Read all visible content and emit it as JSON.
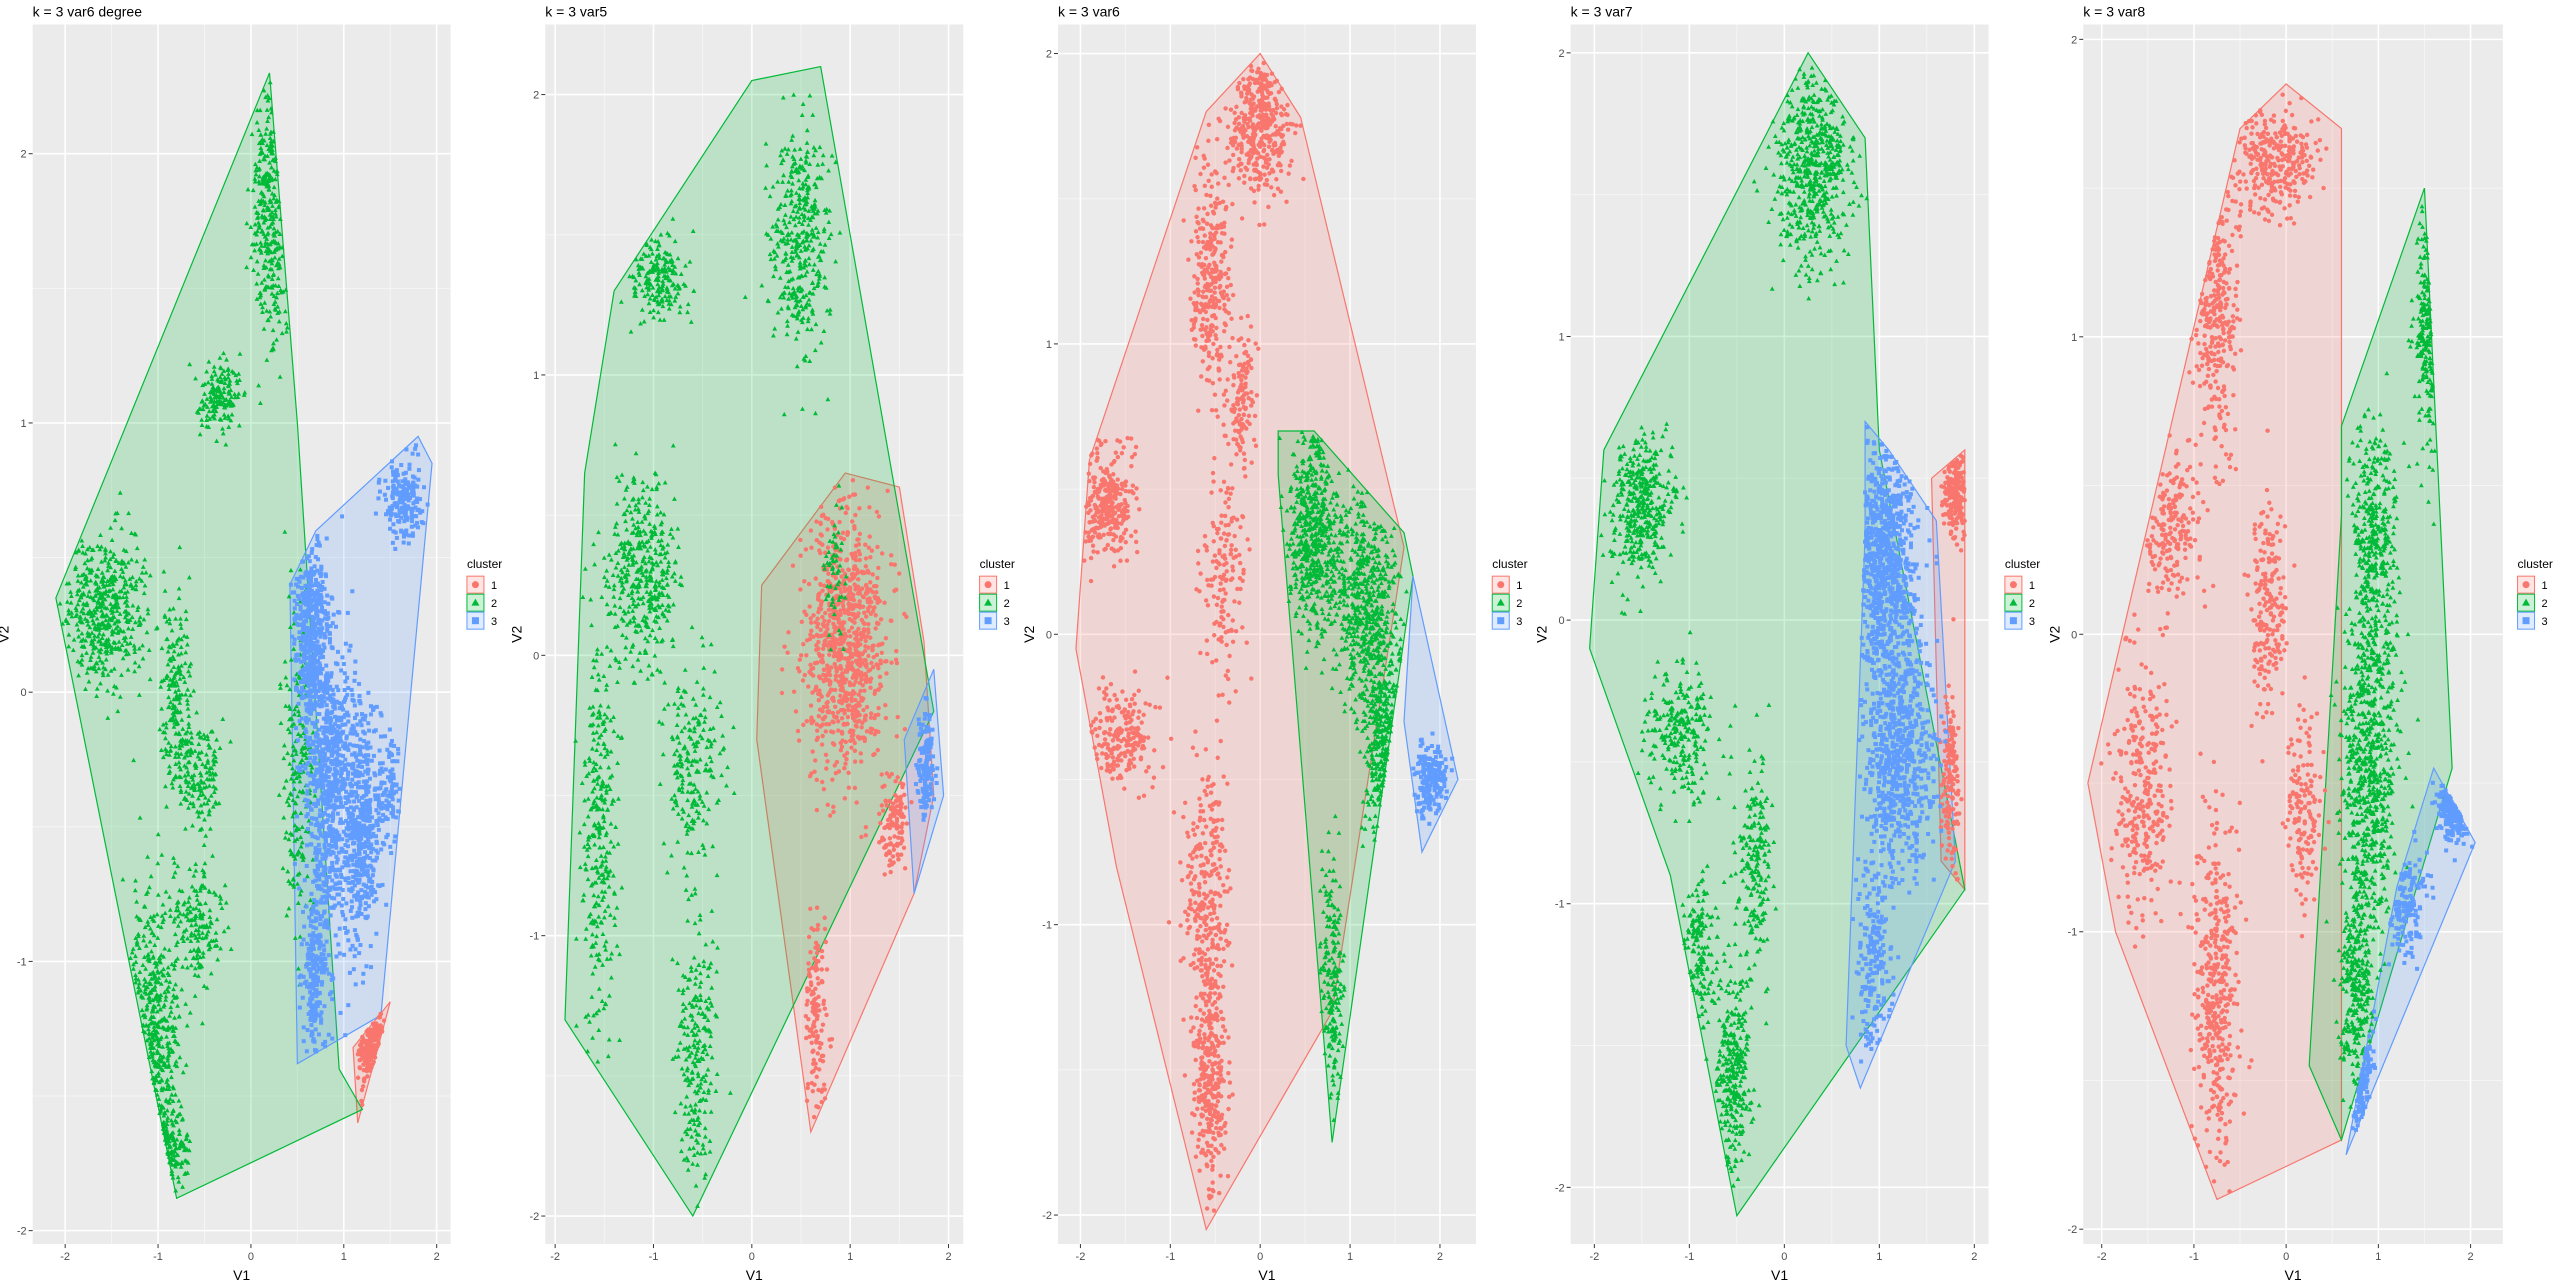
{
  "legend_title": "cluster",
  "legend_labels": [
    "1",
    "2",
    "3"
  ],
  "colors": {
    "1": "#F8766D",
    "2": "#00BA38",
    "3": "#619CFF",
    "panel_bg": "#EBEBEB",
    "grid": "#FFFFFF"
  },
  "chart_data": [
    {
      "type": "scatter",
      "title": "k = 3 var6 degree",
      "xlabel": "V1",
      "ylabel": "V2",
      "xlim": [
        -2.35,
        2.15
      ],
      "ylim": [
        -2.05,
        2.48
      ],
      "xticks": [
        -2,
        -1,
        0,
        1,
        2
      ],
      "yticks": [
        -2,
        -1,
        0,
        1,
        2
      ],
      "grid": true,
      "legend_position": "right",
      "clusters": [
        {
          "name": "1",
          "hull": [
            [
              1.1,
              -1.32
            ],
            [
              1.5,
              -1.15
            ],
            [
              1.15,
              -1.6
            ]
          ],
          "blobs": [
            [
              1.3,
              -1.3,
              0.12,
              0.15,
              180
            ]
          ]
        },
        {
          "name": "2",
          "hull": [
            [
              -2.1,
              0.35
            ],
            [
              0.2,
              2.3
            ],
            [
              0.5,
              1.0
            ],
            [
              0.95,
              -1.4
            ],
            [
              1.2,
              -1.55
            ],
            [
              -0.8,
              -1.88
            ]
          ],
          "blobs": [
            [
              0.2,
              1.8,
              0.16,
              0.4,
              320
            ],
            [
              -0.35,
              1.1,
              0.2,
              0.12,
              160
            ],
            [
              -1.55,
              0.3,
              0.4,
              0.22,
              500
            ],
            [
              -0.8,
              0.0,
              0.15,
              0.35,
              200
            ],
            [
              -0.55,
              -0.3,
              0.2,
              0.15,
              140
            ],
            [
              -0.55,
              -0.85,
              0.2,
              0.2,
              160
            ],
            [
              -1.05,
              -1.3,
              0.22,
              0.45,
              420
            ],
            [
              -0.9,
              -1.7,
              0.2,
              0.1,
              120
            ],
            [
              0.5,
              -0.3,
              0.15,
              0.5,
              200
            ]
          ]
        },
        {
          "name": "3",
          "hull": [
            [
              0.7,
              0.6
            ],
            [
              1.8,
              0.95
            ],
            [
              1.95,
              0.85
            ],
            [
              1.4,
              -1.2
            ],
            [
              0.5,
              -1.38
            ],
            [
              0.42,
              0.4
            ]
          ],
          "blobs": [
            [
              1.65,
              0.72,
              0.18,
              0.12,
              200
            ],
            [
              0.65,
              0.2,
              0.15,
              0.35,
              500
            ],
            [
              0.85,
              -0.35,
              0.22,
              0.45,
              700
            ],
            [
              1.2,
              -0.5,
              0.18,
              0.4,
              500
            ],
            [
              0.7,
              -1.05,
              0.12,
              0.25,
              220
            ],
            [
              1.5,
              -0.35,
              0.08,
              0.15,
              80
            ]
          ]
        }
      ]
    },
    {
      "type": "scatter",
      "title": "k = 3 var5",
      "xlabel": "V1",
      "ylabel": "V2",
      "xlim": [
        -2.1,
        2.15
      ],
      "ylim": [
        -2.1,
        2.25
      ],
      "xticks": [
        -2,
        -1,
        0,
        1,
        2
      ],
      "yticks": [
        -2,
        -1,
        0,
        1,
        2
      ],
      "grid": true,
      "legend_position": "right",
      "clusters": [
        {
          "name": "1",
          "hull": [
            [
              0.95,
              0.65
            ],
            [
              1.5,
              0.6
            ],
            [
              1.75,
              0.05
            ],
            [
              1.85,
              -0.5
            ],
            [
              1.65,
              -0.85
            ],
            [
              0.6,
              -1.7
            ],
            [
              0.05,
              -0.3
            ],
            [
              0.1,
              0.25
            ]
          ],
          "blobs": [
            [
              0.95,
              0.05,
              0.35,
              0.42,
              900
            ],
            [
              1.45,
              -0.6,
              0.12,
              0.15,
              120
            ],
            [
              0.65,
              -1.3,
              0.1,
              0.3,
              140
            ]
          ]
        },
        {
          "name": "2",
          "hull": [
            [
              -1.4,
              1.3
            ],
            [
              0.0,
              2.05
            ],
            [
              0.7,
              2.1
            ],
            [
              1.5,
              0.5
            ],
            [
              1.85,
              -0.2
            ],
            [
              -0.6,
              -2.0
            ],
            [
              -1.9,
              -1.3
            ],
            [
              -1.7,
              0.65
            ]
          ],
          "blobs": [
            [
              0.5,
              1.5,
              0.25,
              0.35,
              400
            ],
            [
              -0.95,
              1.35,
              0.25,
              0.12,
              200
            ],
            [
              -1.1,
              0.3,
              0.3,
              0.3,
              400
            ],
            [
              -1.55,
              -0.6,
              0.15,
              0.6,
              300
            ],
            [
              -0.55,
              -1.4,
              0.15,
              0.4,
              240
            ],
            [
              -0.6,
              -0.4,
              0.25,
              0.25,
              200
            ],
            [
              0.85,
              0.3,
              0.1,
              0.2,
              60
            ]
          ]
        },
        {
          "name": "3",
          "hull": [
            [
              1.85,
              -0.05
            ],
            [
              1.95,
              -0.5
            ],
            [
              1.65,
              -0.85
            ],
            [
              1.55,
              -0.3
            ]
          ],
          "blobs": [
            [
              1.78,
              -0.4,
              0.08,
              0.18,
              150
            ]
          ]
        }
      ]
    },
    {
      "type": "scatter",
      "title": "k = 3 var6",
      "xlabel": "V1",
      "ylabel": "V2",
      "xlim": [
        -2.25,
        2.4
      ],
      "ylim": [
        -2.1,
        2.1
      ],
      "xticks": [
        -2,
        -1,
        0,
        1,
        2
      ],
      "yticks": [
        -2,
        -1,
        0,
        1,
        2
      ],
      "grid": true,
      "legend_position": "right",
      "clusters": [
        {
          "name": "1",
          "hull": [
            [
              -2.05,
              -0.05
            ],
            [
              -1.9,
              0.6
            ],
            [
              -0.6,
              1.8
            ],
            [
              0.0,
              2.0
            ],
            [
              0.45,
              1.78
            ],
            [
              1.6,
              0.3
            ],
            [
              0.8,
              -1.3
            ],
            [
              -0.6,
              -2.05
            ],
            [
              -1.6,
              -0.8
            ]
          ],
          "blobs": [
            [
              0.0,
              1.75,
              0.28,
              0.2,
              400
            ],
            [
              -0.55,
              1.2,
              0.18,
              0.35,
              300
            ],
            [
              -1.7,
              0.45,
              0.25,
              0.15,
              300
            ],
            [
              -1.55,
              -0.35,
              0.3,
              0.15,
              200
            ],
            [
              -0.6,
              -0.9,
              0.2,
              0.4,
              300
            ],
            [
              -0.55,
              -1.55,
              0.15,
              0.3,
              300
            ],
            [
              -0.4,
              0.2,
              0.18,
              0.3,
              150
            ],
            [
              -0.2,
              0.8,
              0.12,
              0.2,
              120
            ]
          ]
        },
        {
          "name": "2",
          "hull": [
            [
              0.2,
              0.7
            ],
            [
              0.6,
              0.7
            ],
            [
              1.6,
              0.35
            ],
            [
              1.7,
              0.2
            ],
            [
              0.8,
              -1.75
            ],
            [
              0.2,
              0.55
            ]
          ],
          "blobs": [
            [
              0.6,
              0.35,
              0.25,
              0.3,
              600
            ],
            [
              1.2,
              0.1,
              0.3,
              0.3,
              600
            ],
            [
              1.4,
              -0.4,
              0.2,
              0.3,
              300
            ],
            [
              0.8,
              -1.2,
              0.1,
              0.35,
              200
            ]
          ]
        },
        {
          "name": "3",
          "hull": [
            [
              1.7,
              0.2
            ],
            [
              2.2,
              -0.5
            ],
            [
              1.8,
              -0.75
            ],
            [
              1.6,
              -0.3
            ]
          ],
          "blobs": [
            [
              1.9,
              -0.5,
              0.15,
              0.1,
              200
            ]
          ]
        }
      ]
    },
    {
      "type": "scatter",
      "title": "k = 3 var7",
      "xlabel": "V1",
      "ylabel": "V2",
      "xlim": [
        -2.25,
        2.15
      ],
      "ylim": [
        -2.2,
        2.1
      ],
      "xticks": [
        -2,
        -1,
        0,
        1,
        2
      ],
      "yticks": [
        -2,
        -1,
        0,
        1,
        2
      ],
      "grid": true,
      "legend_position": "right",
      "clusters": [
        {
          "name": "1",
          "hull": [
            [
              1.55,
              0.5
            ],
            [
              1.9,
              0.6
            ],
            [
              1.9,
              -0.95
            ],
            [
              1.65,
              -0.85
            ]
          ],
          "blobs": [
            [
              1.8,
              0.45,
              0.1,
              0.12,
              200
            ],
            [
              1.75,
              -0.6,
              0.08,
              0.3,
              150
            ]
          ]
        },
        {
          "name": "2",
          "hull": [
            [
              -2.05,
              -0.1
            ],
            [
              -1.9,
              0.6
            ],
            [
              0.25,
              2.0
            ],
            [
              0.85,
              1.7
            ],
            [
              1.0,
              0.6
            ],
            [
              1.9,
              -0.95
            ],
            [
              -0.5,
              -2.1
            ],
            [
              -1.2,
              -0.9
            ]
          ],
          "blobs": [
            [
              0.3,
              1.6,
              0.35,
              0.3,
              600
            ],
            [
              -1.5,
              0.4,
              0.25,
              0.2,
              400
            ],
            [
              -1.1,
              -0.4,
              0.3,
              0.2,
              250
            ],
            [
              -0.3,
              -0.85,
              0.15,
              0.3,
              200
            ],
            [
              -0.55,
              -1.6,
              0.15,
              0.3,
              300
            ],
            [
              -0.9,
              -1.2,
              0.15,
              0.25,
              150
            ]
          ]
        },
        {
          "name": "3",
          "hull": [
            [
              0.85,
              0.7
            ],
            [
              1.1,
              0.6
            ],
            [
              1.6,
              0.35
            ],
            [
              1.8,
              -0.85
            ],
            [
              0.8,
              -1.65
            ],
            [
              0.65,
              -1.5
            ],
            [
              0.85,
              0.3
            ]
          ],
          "blobs": [
            [
              1.05,
              0.2,
              0.3,
              0.35,
              800
            ],
            [
              1.2,
              -0.45,
              0.3,
              0.35,
              700
            ],
            [
              0.95,
              -1.2,
              0.15,
              0.35,
              200
            ]
          ]
        }
      ]
    },
    {
      "type": "scatter",
      "title": "k = 3 var8",
      "xlabel": "V1",
      "ylabel": "V2",
      "xlim": [
        -2.2,
        2.35
      ],
      "ylim": [
        -2.05,
        2.05
      ],
      "xticks": [
        -2,
        -1,
        0,
        1,
        2
      ],
      "yticks": [
        -2,
        -1,
        0,
        1,
        2
      ],
      "grid": true,
      "legend_position": "right",
      "clusters": [
        {
          "name": "1",
          "hull": [
            [
              -2.15,
              -0.5
            ],
            [
              -0.5,
              1.7
            ],
            [
              0.0,
              1.85
            ],
            [
              0.6,
              1.7
            ],
            [
              0.6,
              -1.7
            ],
            [
              -0.75,
              -1.9
            ],
            [
              -1.85,
              -1.0
            ]
          ],
          "blobs": [
            [
              -0.1,
              1.6,
              0.35,
              0.15,
              300
            ],
            [
              -0.75,
              1.1,
              0.2,
              0.4,
              300
            ],
            [
              -1.25,
              0.35,
              0.25,
              0.2,
              200
            ],
            [
              -0.2,
              0.1,
              0.15,
              0.3,
              200
            ],
            [
              -1.55,
              -0.5,
              0.25,
              0.35,
              300
            ],
            [
              -0.75,
              -1.2,
              0.2,
              0.5,
              400
            ],
            [
              0.2,
              -0.6,
              0.15,
              0.3,
              150
            ]
          ]
        },
        {
          "name": "2",
          "hull": [
            [
              0.6,
              0.7
            ],
            [
              1.5,
              1.5
            ],
            [
              1.8,
              -0.45
            ],
            [
              0.6,
              -1.7
            ],
            [
              0.25,
              -1.45
            ],
            [
              0.6,
              0.4
            ]
          ],
          "blobs": [
            [
              1.55,
              1.05,
              0.12,
              0.3,
              200
            ],
            [
              0.95,
              0.3,
              0.2,
              0.35,
              400
            ],
            [
              0.9,
              -0.45,
              0.25,
              0.45,
              700
            ],
            [
              0.75,
              -1.2,
              0.15,
              0.3,
              300
            ]
          ]
        },
        {
          "name": "3",
          "hull": [
            [
              1.6,
              -0.45
            ],
            [
              2.05,
              -0.7
            ],
            [
              0.65,
              -1.75
            ],
            [
              1.2,
              -0.85
            ]
          ],
          "blobs": [
            [
              1.85,
              -0.55,
              0.15,
              0.1,
              250
            ],
            [
              1.3,
              -0.9,
              0.2,
              0.15,
              150
            ],
            [
              0.8,
              -1.45,
              0.1,
              0.2,
              120
            ]
          ]
        }
      ]
    }
  ]
}
